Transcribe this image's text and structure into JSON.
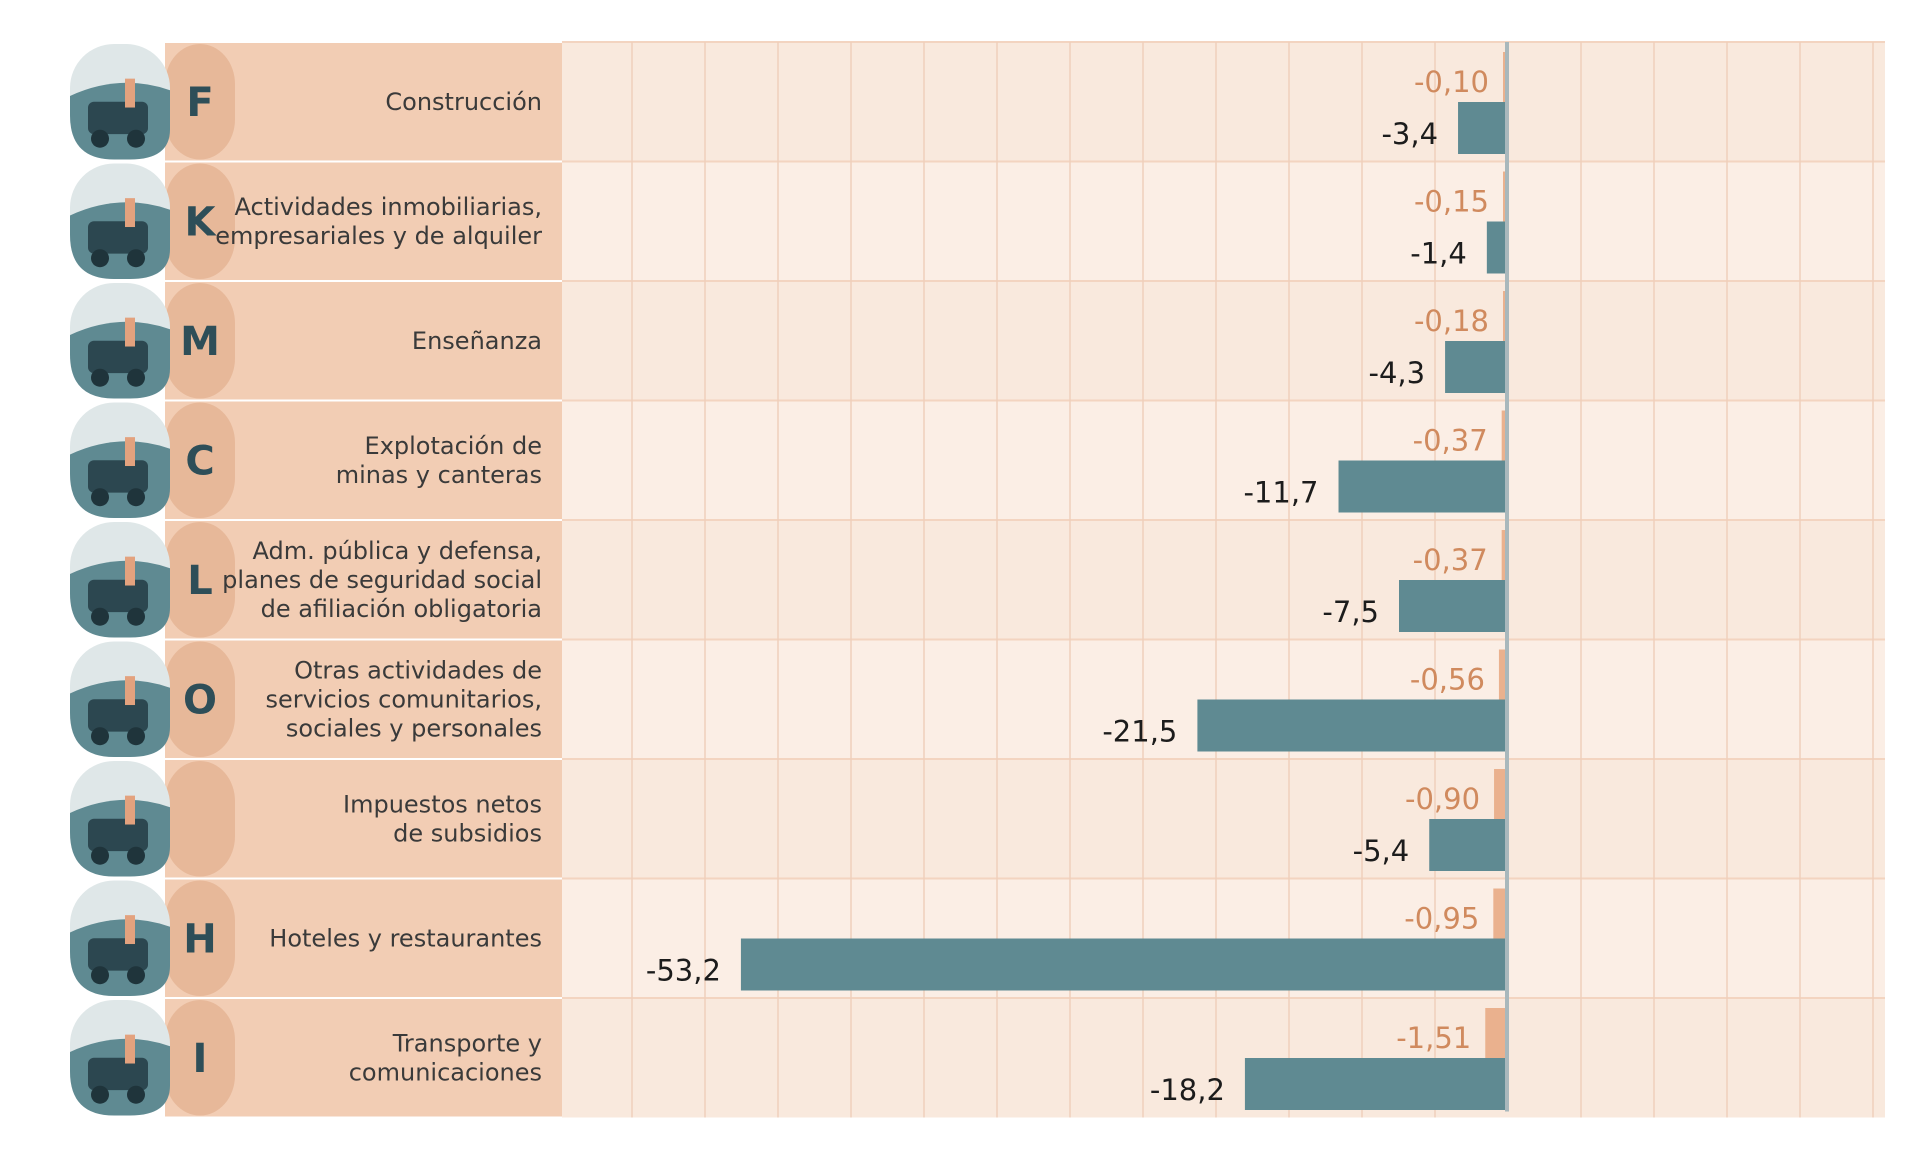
{
  "chart_data": {
    "type": "bar",
    "orientation": "horizontal",
    "title": "",
    "xlim": [
      -60,
      0
    ],
    "grid": true,
    "colors": {
      "row_light": "#f9e9dd",
      "row_alt": "#fbeee5",
      "label_band": "#f2cdb4",
      "tab": "#e7b899",
      "icon_bg": "#5f8a92",
      "icon_dark": "#2c4750",
      "series_small": "#eab18e",
      "series_large": "#5f8a92",
      "axis": "#a9b8bc",
      "grid": "#efcfbb"
    },
    "series": [
      {
        "name": "small",
        "values": [
          -0.1,
          -0.15,
          -0.18,
          -0.37,
          -0.37,
          -0.56,
          -0.9,
          -0.95,
          -1.51
        ],
        "labels": [
          "-0,10",
          "-0,15",
          "-0,18",
          "-0,37",
          "-0,37",
          "-0,56",
          "-0,90",
          "-0,95",
          "-1,51"
        ]
      },
      {
        "name": "large",
        "values": [
          -3.4,
          -1.4,
          -4.3,
          -11.7,
          -7.5,
          -21.5,
          -5.4,
          -53.2,
          -18.2
        ],
        "labels": [
          "-3,4",
          "-1,4",
          "-4,3",
          "-11,7",
          "-7,5",
          "-21,5",
          "-5,4",
          "-53,2",
          "-18,2"
        ]
      }
    ],
    "categories": [
      {
        "code": "F",
        "label_lines": [
          "Construcción"
        ],
        "icon": "construction-truck-icon"
      },
      {
        "code": "K",
        "label_lines": [
          "Actividades inmobiliarias,",
          "empresariales y de alquiler"
        ],
        "icon": "real-estate-key-icon"
      },
      {
        "code": "M",
        "label_lines": [
          "Enseñanza"
        ],
        "icon": "education-notebook-icon"
      },
      {
        "code": "C",
        "label_lines": [
          "Explotación de",
          "minas y canteras"
        ],
        "icon": "mining-pump-icon"
      },
      {
        "code": "L",
        "label_lines": [
          "Adm. pública y defensa,",
          "planes de seguridad social",
          "de afiliación obligatoria"
        ],
        "icon": "government-building-icon"
      },
      {
        "code": "O",
        "label_lines": [
          "Otras actividades de",
          "servicios comunitarios,",
          "sociales y personales"
        ],
        "icon": "community-services-icon"
      },
      {
        "code": "",
        "label_lines": [
          "Impuestos netos",
          "de subsidios"
        ],
        "icon": "taxes-coins-icon"
      },
      {
        "code": "H",
        "label_lines": [
          "Hoteles y restaurantes"
        ],
        "icon": "hotel-icon"
      },
      {
        "code": "I",
        "label_lines": [
          "Transporte y",
          "comunicaciones"
        ],
        "icon": "transport-bus-icon"
      }
    ]
  }
}
